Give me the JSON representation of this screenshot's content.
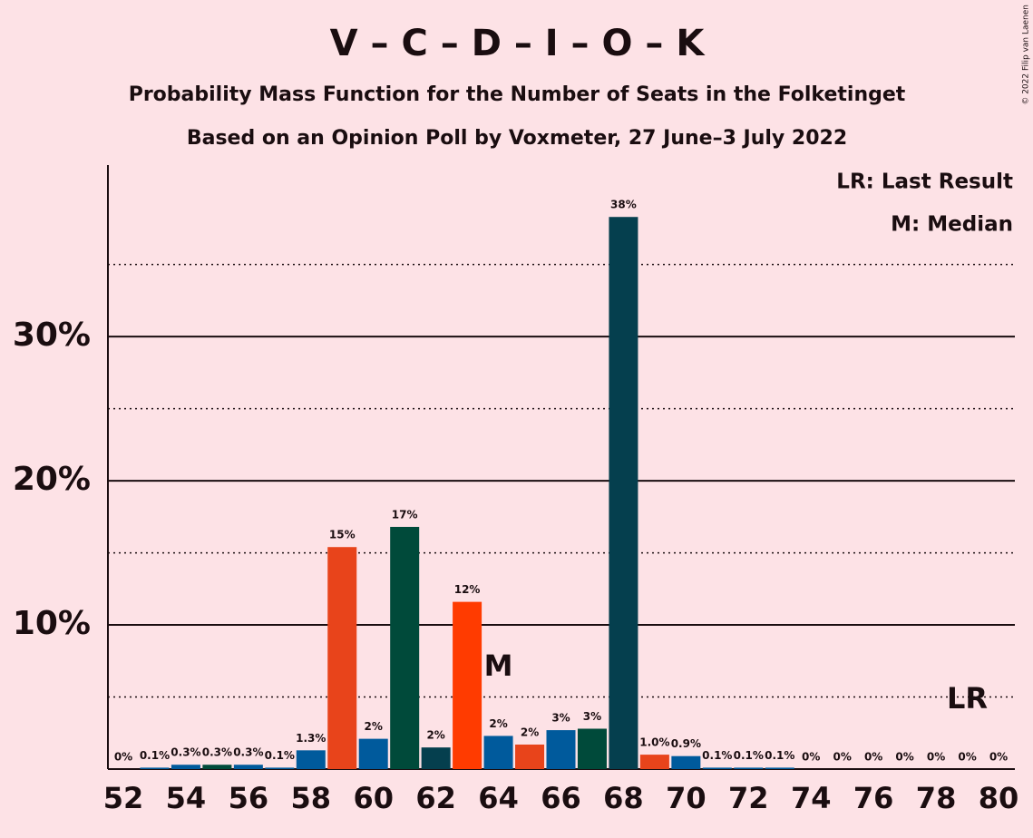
{
  "chart_data": {
    "type": "bar",
    "title": "V – C – D – I – O – K",
    "subtitle": "Probability Mass Function for the Number of Seats in the Folketinget",
    "subtitle2": "Based on an Opinion Poll by Voxmeter, 27 June–3 July 2022",
    "legend_notes": [
      "LR: Last Result",
      "M: Median"
    ],
    "median_marker": "M",
    "last_result_marker": "LR",
    "copyright": "© 2022 Filip van Laenen",
    "categories": [
      52,
      null,
      54,
      null,
      56,
      null,
      58,
      null,
      60,
      null,
      62,
      null,
      64,
      null,
      66,
      null,
      68,
      null,
      70,
      null,
      72,
      null,
      74,
      null,
      76,
      null,
      78,
      null,
      80
    ],
    "values": [
      0,
      0.1,
      0.3,
      0.3,
      0.3,
      0.1,
      1.3,
      15.4,
      2.1,
      16.8,
      1.5,
      11.6,
      2.3,
      1.7,
      2.7,
      2.8,
      38.3,
      1.0,
      0.9,
      0.1,
      0.1,
      0.1,
      0,
      0,
      0,
      0,
      0,
      0,
      0
    ],
    "value_labels": [
      "0%",
      "0.1%",
      "0.3%",
      "0.3%",
      "0.3%",
      "0.1%",
      "1.3%",
      "15%",
      "2%",
      "17%",
      "2%",
      "12%",
      "2%",
      "2%",
      "3%",
      "3%",
      "38%",
      "1.0%",
      "0.9%",
      "0.1%",
      "0.1%",
      "0.1%",
      "0%",
      "0%",
      "0%",
      "0%",
      "0%",
      "0%",
      "0%"
    ],
    "colors": [
      "#005a9c",
      "#005a9c",
      "#005a9c",
      "#004a3a",
      "#005a9c",
      "#005a9c",
      "#005a9c",
      "#e8441b",
      "#005a9c",
      "#004a3a",
      "#053f4e",
      "#ff3b00",
      "#005a9c",
      "#e8441b",
      "#005a9c",
      "#004a3a",
      "#053f4e",
      "#e8441b",
      "#005a9c",
      "#005a9c",
      "#005a9c",
      "#005a9c",
      "#005a9c",
      "#005a9c",
      "#005a9c",
      "#005a9c",
      "#005a9c",
      "#005a9c",
      "#005a9c"
    ],
    "ylim": [
      0,
      41.9
    ],
    "yticks": [
      {
        "value": 10,
        "label": "10%"
      },
      {
        "value": 20,
        "label": "20%"
      },
      {
        "value": 30,
        "label": "30%"
      }
    ],
    "minor_yticks": [
      5,
      15,
      25,
      35
    ],
    "grid": true
  }
}
